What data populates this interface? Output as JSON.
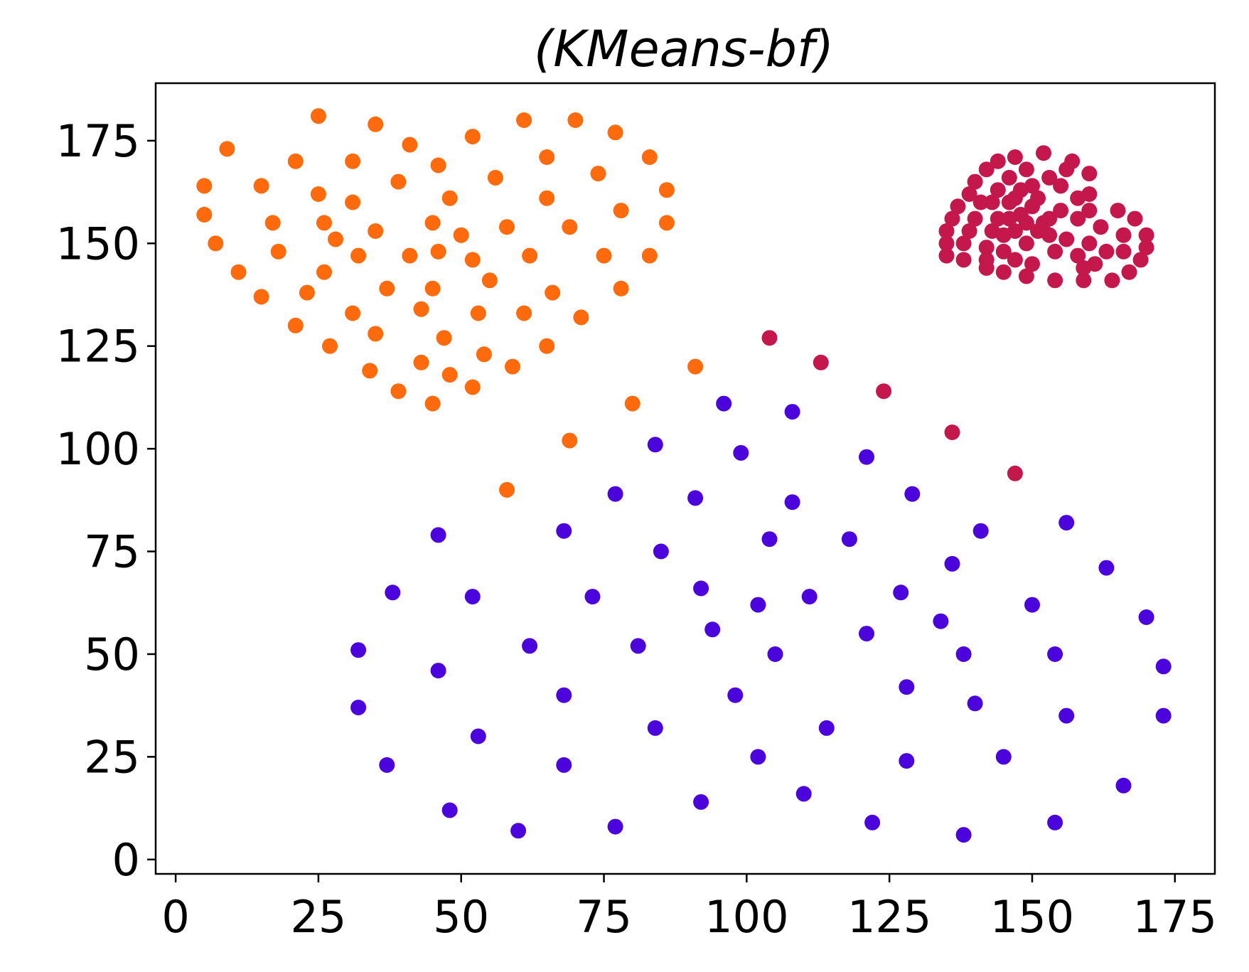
{
  "chart_data": {
    "type": "scatter",
    "title": "(KMeans-bf)",
    "xlabel": "",
    "ylabel": "",
    "xlim": [
      -3.5,
      182
    ],
    "ylim": [
      -3.5,
      189
    ],
    "xticks": [
      0,
      25,
      50,
      75,
      100,
      125,
      150,
      175
    ],
    "yticks": [
      0,
      25,
      50,
      75,
      100,
      125,
      150,
      175
    ],
    "grid": false,
    "series": [
      {
        "color": "#ff6a0d",
        "points": [
          [
            5,
            164
          ],
          [
            5,
            157
          ],
          [
            7,
            150
          ],
          [
            9,
            173
          ],
          [
            11,
            143
          ],
          [
            15,
            164
          ],
          [
            15,
            137
          ],
          [
            17,
            155
          ],
          [
            18,
            148
          ],
          [
            21,
            170
          ],
          [
            21,
            130
          ],
          [
            23,
            138
          ],
          [
            25,
            162
          ],
          [
            25,
            181
          ],
          [
            26,
            155
          ],
          [
            26,
            143
          ],
          [
            27,
            125
          ],
          [
            28,
            151
          ],
          [
            31,
            133
          ],
          [
            31,
            170
          ],
          [
            31,
            160
          ],
          [
            32,
            147
          ],
          [
            34,
            119
          ],
          [
            35,
            179
          ],
          [
            35,
            153
          ],
          [
            35,
            128
          ],
          [
            37,
            139
          ],
          [
            39,
            165
          ],
          [
            39,
            114
          ],
          [
            41,
            147
          ],
          [
            41,
            174
          ],
          [
            43,
            134
          ],
          [
            43,
            121
          ],
          [
            45,
            155
          ],
          [
            45,
            139
          ],
          [
            45,
            111
          ],
          [
            46,
            169
          ],
          [
            46,
            148
          ],
          [
            47,
            127
          ],
          [
            48,
            118
          ],
          [
            48,
            161
          ],
          [
            50,
            152
          ],
          [
            52,
            176
          ],
          [
            52,
            146
          ],
          [
            52,
            115
          ],
          [
            53,
            133
          ],
          [
            54,
            123
          ],
          [
            55,
            141
          ],
          [
            56,
            166
          ],
          [
            58,
            154
          ],
          [
            58,
            90
          ],
          [
            59,
            120
          ],
          [
            61,
            180
          ],
          [
            61,
            133
          ],
          [
            62,
            147
          ],
          [
            65,
            125
          ],
          [
            65,
            171
          ],
          [
            65,
            161
          ],
          [
            66,
            138
          ],
          [
            69,
            154
          ],
          [
            69,
            102
          ],
          [
            70,
            180
          ],
          [
            71,
            132
          ],
          [
            74,
            167
          ],
          [
            75,
            147
          ],
          [
            77,
            177
          ],
          [
            78,
            158
          ],
          [
            78,
            139
          ],
          [
            80,
            111
          ],
          [
            83,
            147
          ],
          [
            83,
            171
          ],
          [
            86,
            163
          ],
          [
            86,
            155
          ],
          [
            91,
            120
          ]
        ]
      },
      {
        "color": "#c4174c",
        "points": [
          [
            104,
            127
          ],
          [
            113,
            121
          ],
          [
            124,
            114
          ],
          [
            136,
            104
          ],
          [
            147,
            94
          ],
          [
            135,
            147
          ],
          [
            135,
            150
          ],
          [
            135,
            153
          ],
          [
            136,
            156
          ],
          [
            137,
            159
          ],
          [
            138,
            146
          ],
          [
            138,
            150
          ],
          [
            139,
            153
          ],
          [
            139,
            162
          ],
          [
            140,
            156
          ],
          [
            140,
            165
          ],
          [
            141,
            160
          ],
          [
            142,
            168
          ],
          [
            142,
            144
          ],
          [
            142,
            146
          ],
          [
            142,
            149
          ],
          [
            143,
            153
          ],
          [
            143,
            160
          ],
          [
            144,
            163
          ],
          [
            144,
            170
          ],
          [
            144,
            156
          ],
          [
            145,
            152
          ],
          [
            145,
            143
          ],
          [
            145,
            148
          ],
          [
            146,
            166
          ],
          [
            146,
            160
          ],
          [
            146,
            156
          ],
          [
            147,
            171
          ],
          [
            147,
            153
          ],
          [
            147,
            161
          ],
          [
            147,
            146
          ],
          [
            148,
            163
          ],
          [
            148,
            157
          ],
          [
            149,
            168
          ],
          [
            149,
            155
          ],
          [
            149,
            150
          ],
          [
            149,
            142
          ],
          [
            150,
            159
          ],
          [
            150,
            145
          ],
          [
            150,
            164
          ],
          [
            151,
            153
          ],
          [
            151,
            161
          ],
          [
            152,
            155
          ],
          [
            152,
            172
          ],
          [
            153,
            156
          ],
          [
            153,
            166
          ],
          [
            153,
            152
          ],
          [
            154,
            148
          ],
          [
            154,
            141
          ],
          [
            155,
            158
          ],
          [
            155,
            164
          ],
          [
            156,
            168
          ],
          [
            156,
            151
          ],
          [
            157,
            170
          ],
          [
            158,
            147
          ],
          [
            158,
            161
          ],
          [
            158,
            156
          ],
          [
            159,
            144
          ],
          [
            159,
            141
          ],
          [
            160,
            158
          ],
          [
            160,
            162
          ],
          [
            160,
            150
          ],
          [
            160,
            167
          ],
          [
            161,
            145
          ],
          [
            162,
            154
          ],
          [
            163,
            148
          ],
          [
            164,
            141
          ],
          [
            165,
            158
          ],
          [
            166,
            152
          ],
          [
            166,
            148
          ],
          [
            167,
            143
          ],
          [
            168,
            156
          ],
          [
            169,
            146
          ],
          [
            170,
            149
          ],
          [
            170,
            152
          ]
        ]
      },
      {
        "color": "#4b05dc",
        "points": [
          [
            32,
            51
          ],
          [
            32,
            37
          ],
          [
            37,
            23
          ],
          [
            38,
            65
          ],
          [
            46,
            79
          ],
          [
            46,
            46
          ],
          [
            48,
            12
          ],
          [
            52,
            64
          ],
          [
            53,
            30
          ],
          [
            60,
            7
          ],
          [
            62,
            52
          ],
          [
            68,
            80
          ],
          [
            68,
            40
          ],
          [
            68,
            23
          ],
          [
            73,
            64
          ],
          [
            77,
            89
          ],
          [
            77,
            8
          ],
          [
            81,
            52
          ],
          [
            84,
            101
          ],
          [
            84,
            32
          ],
          [
            85,
            75
          ],
          [
            91,
            88
          ],
          [
            92,
            66
          ],
          [
            92,
            14
          ],
          [
            94,
            56
          ],
          [
            96,
            111
          ],
          [
            98,
            40
          ],
          [
            99,
            99
          ],
          [
            102,
            62
          ],
          [
            102,
            25
          ],
          [
            104,
            78
          ],
          [
            105,
            50
          ],
          [
            108,
            87
          ],
          [
            108,
            109
          ],
          [
            110,
            16
          ],
          [
            111,
            64
          ],
          [
            114,
            32
          ],
          [
            118,
            78
          ],
          [
            121,
            98
          ],
          [
            121,
            55
          ],
          [
            122,
            9
          ],
          [
            127,
            65
          ],
          [
            128,
            42
          ],
          [
            128,
            24
          ],
          [
            129,
            89
          ],
          [
            134,
            58
          ],
          [
            136,
            72
          ],
          [
            138,
            50
          ],
          [
            138,
            6
          ],
          [
            140,
            38
          ],
          [
            141,
            80
          ],
          [
            145,
            25
          ],
          [
            150,
            62
          ],
          [
            154,
            50
          ],
          [
            154,
            9
          ],
          [
            156,
            82
          ],
          [
            156,
            35
          ],
          [
            163,
            71
          ],
          [
            166,
            18
          ],
          [
            170,
            59
          ],
          [
            173,
            47
          ],
          [
            173,
            35
          ]
        ]
      }
    ]
  }
}
